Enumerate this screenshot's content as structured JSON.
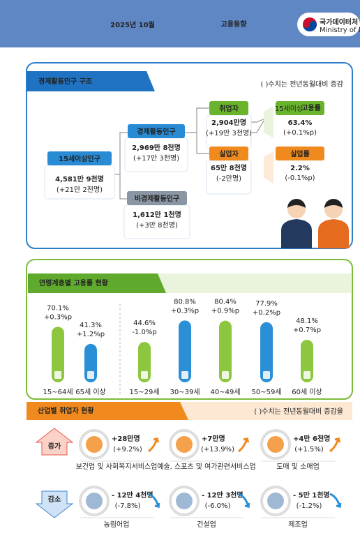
{
  "header": {
    "title_date": "2025년  10월",
    "title_main": "고용동향",
    "org": "국가데이터처",
    "org_en": "Ministry of Data and Statistics"
  },
  "structure": {
    "title": "경제활동인구 구조",
    "note": "( )수치는 전년동월대비 증감",
    "population": {
      "label": "15세이상인구",
      "value": "4,581만 9천명",
      "change": "(+21만 2천명)"
    },
    "active": {
      "label": "경제활동인구",
      "value": "2,969만 8천명",
      "change": "(+17만 3천명)"
    },
    "inactive": {
      "label": "비경제활동인구",
      "value": "1,612만 1천명",
      "change": "(+3만 8천명)"
    },
    "employed": {
      "label": "취업자",
      "value": "2,904만명",
      "change": "(+19만 3천명)"
    },
    "unemployed": {
      "label": "실업자",
      "value": "65만 8천명",
      "change": "(-2만명)"
    },
    "employment_rate": {
      "label_prefix": "15세이상",
      "label": "고용률",
      "value": "63.4%",
      "change": "(+0.1%p)"
    },
    "unemployment_rate": {
      "label": "실업률",
      "value": "2.2%",
      "change": "(-0.1%p)"
    }
  },
  "age": {
    "title": "연령계층별 고용률 현황",
    "groups": [
      {
        "label": "15~64세",
        "value": 70.1,
        "value_label": "70.1%",
        "change": "+0.3%p",
        "color": "#8dc63f",
        "change_color": "#e0352b"
      },
      {
        "label": "65세 이상",
        "value": 41.3,
        "value_label": "41.3%",
        "change": "+1.2%p",
        "color": "#2b8fd6",
        "change_color": "#e0352b"
      },
      {
        "label": "15~29세",
        "value": 44.6,
        "value_label": "44.6%",
        "change": "-1.0%p",
        "color": "#8dc63f",
        "change_color": "#2b6fd6"
      },
      {
        "label": "30~39세",
        "value": 80.8,
        "value_label": "80.8%",
        "change": "+0.3%p",
        "color": "#2b8fd6",
        "change_color": "#e0352b"
      },
      {
        "label": "40~49세",
        "value": 80.4,
        "value_label": "80.4%",
        "change": "+0.9%p",
        "color": "#8dc63f",
        "change_color": "#e0352b"
      },
      {
        "label": "50~59세",
        "value": 77.9,
        "value_label": "77.9%",
        "change": "+0.2%p",
        "color": "#2b8fd6",
        "change_color": "#e0352b"
      },
      {
        "label": "60세 이상",
        "value": 48.1,
        "value_label": "48.1%",
        "change": "+0.7%p",
        "color": "#8dc63f",
        "change_color": "#e0352b"
      }
    ]
  },
  "industry": {
    "title": "산업별 취업자 현황",
    "note": "( )수치는 전년동월대비 증감율",
    "increase": {
      "label": "증가",
      "items": [
        {
          "change": "+28만명",
          "rate": "(+9.2%)",
          "name": "보건업 및 사회복지서비스업"
        },
        {
          "change": "+7만명",
          "rate": "(+13.9%)",
          "name": "예술, 스포츠 및 여가관련서비스업"
        },
        {
          "change": "+4만 6천명",
          "rate": "(+1.5%)",
          "name": "도매 및 소매업"
        }
      ]
    },
    "decrease": {
      "label": "감소",
      "items": [
        {
          "change": "- 12만 4천명",
          "rate": "(-7.8%)",
          "name": "농림어업"
        },
        {
          "change": "- 12만 3천명",
          "rate": "(-6.0%)",
          "name": "건설업"
        },
        {
          "change": "- 5만 1천명",
          "rate": "(-1.2%)",
          "name": "제조업"
        }
      ]
    }
  }
}
